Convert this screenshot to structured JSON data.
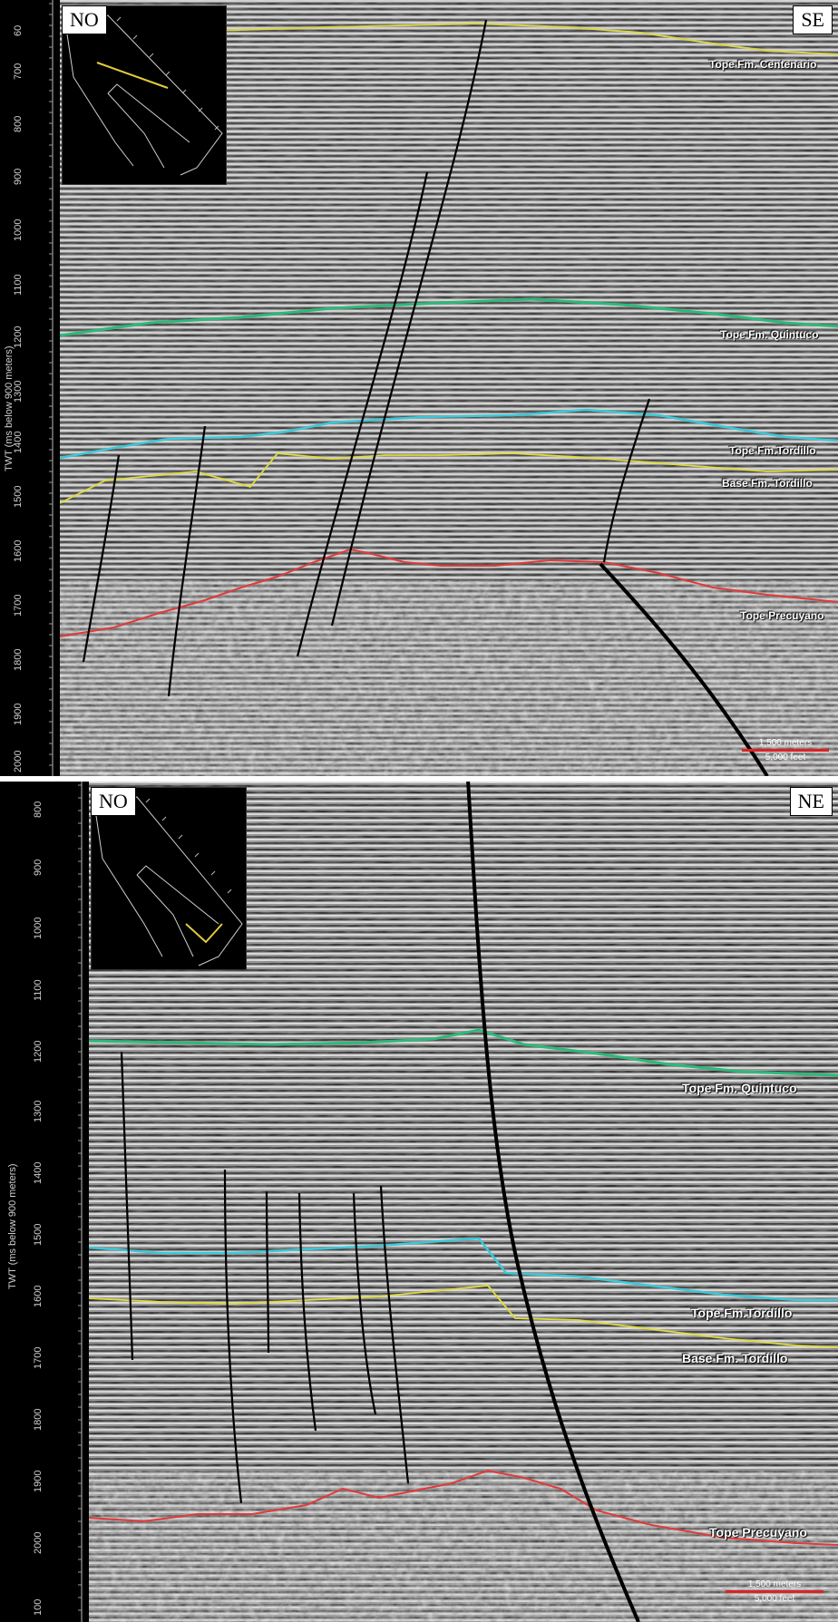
{
  "top_panel": {
    "left_label": "NO",
    "right_label": "SE",
    "axis_title": "TWT (ms below 900 meters)",
    "ticks": [
      "60",
      "700",
      "800",
      "900",
      "1000",
      "1100",
      "1200",
      "1300",
      "1400",
      "1500",
      "1600",
      "1700",
      "1800",
      "1900",
      "2000"
    ],
    "horizons": [
      {
        "name": "Tope Fm. Centenario",
        "color": "#d9d54a"
      },
      {
        "name": "Tope Fm. Quintuco",
        "color": "#2eb87a"
      },
      {
        "name": "Tope Fm.Tordillo",
        "color": "#3cc8d8"
      },
      {
        "name": "Base Fm. Tordillo",
        "color": "#e0dc3a"
      },
      {
        "name": "Tope Precuyano",
        "color": "#e23a3a"
      }
    ],
    "scale": {
      "metric": "1,500 meters",
      "imperial": "5,000 feet"
    }
  },
  "bottom_panel": {
    "left_label": "NO",
    "right_label": "NE",
    "axis_title": "TWT (ms below 900 meters)",
    "ticks": [
      "800",
      "900",
      "1000",
      "1100",
      "1200",
      "1300",
      "1400",
      "1500",
      "1600",
      "1700",
      "1800",
      "1900",
      "2000",
      "100"
    ],
    "horizons": [
      {
        "name": "Tope Fm. Quintuco",
        "color": "#2eb87a"
      },
      {
        "name": "Tope Fm.Tordillo",
        "color": "#3cc8d8"
      },
      {
        "name": "Base Fm. Tordillo",
        "color": "#e0dc3a"
      },
      {
        "name": "Tope Precuyano",
        "color": "#e23a3a"
      }
    ],
    "scale": {
      "metric": "1,500 meters",
      "imperial": "5,000 feet"
    }
  }
}
